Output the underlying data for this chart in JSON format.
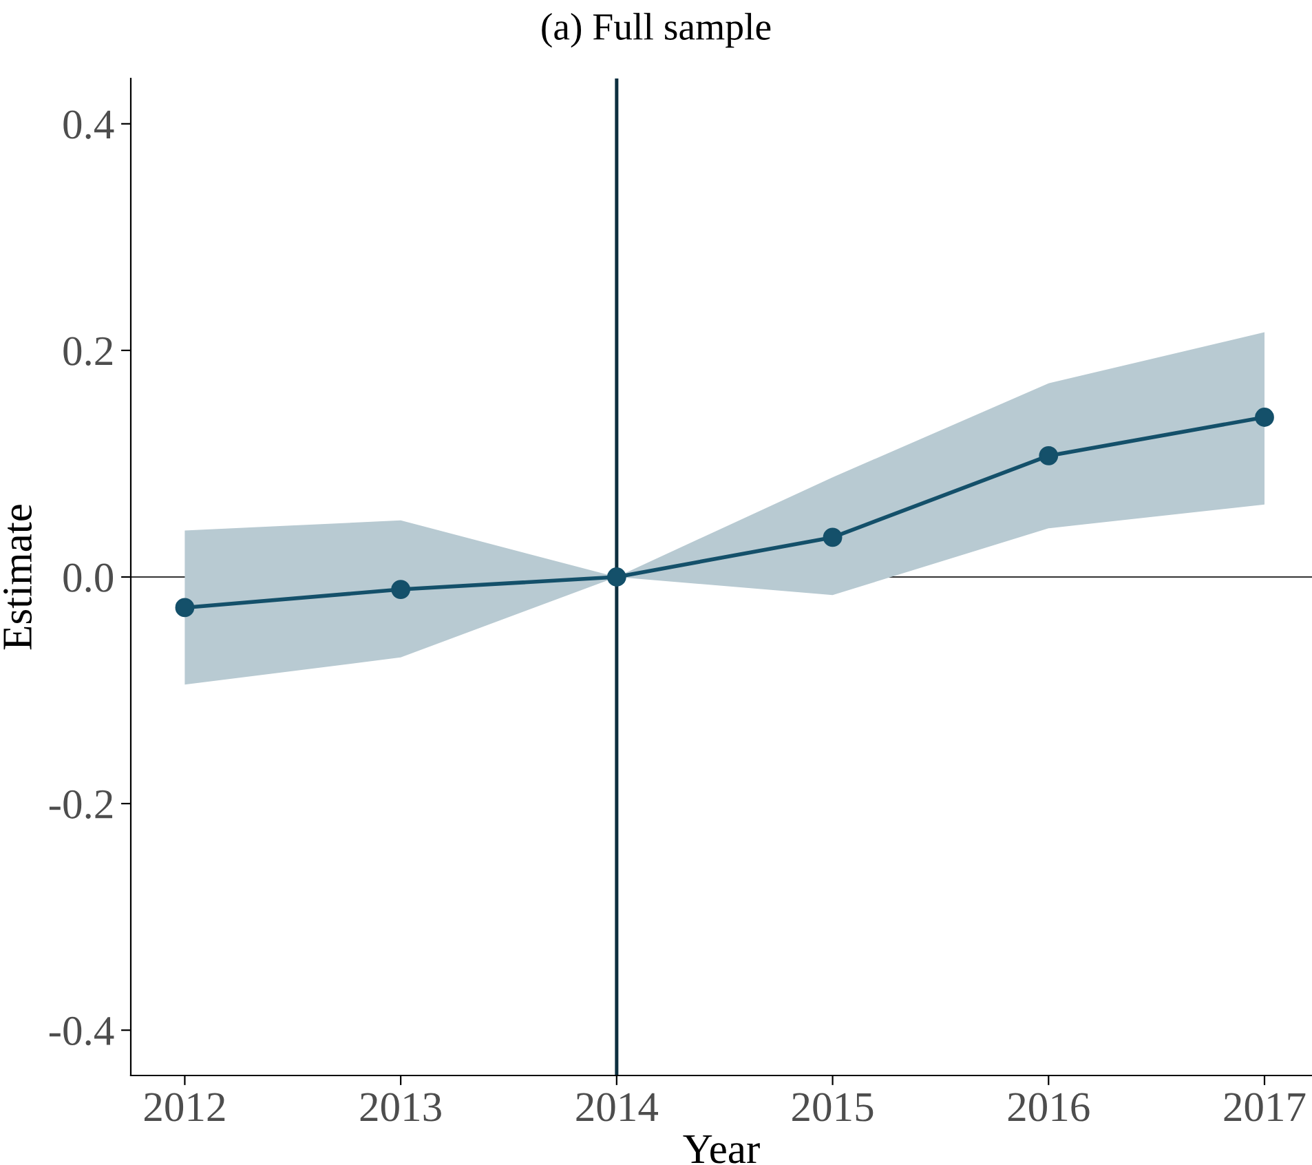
{
  "chart_data": {
    "type": "line",
    "title": "(a) Full sample",
    "xlabel": "Year",
    "ylabel": "Estimate",
    "x": [
      2012,
      2013,
      2014,
      2015,
      2016,
      2017
    ],
    "series": [
      {
        "color": "#14506a",
        "values": [
          -0.027,
          -0.011,
          0.0,
          0.035,
          0.107,
          0.141
        ],
        "lower": [
          -0.095,
          -0.071,
          0.0,
          -0.016,
          0.043,
          0.064
        ],
        "upper": [
          0.041,
          0.05,
          0.0,
          0.088,
          0.171,
          0.216
        ]
      }
    ],
    "xlim": [
      2011.75,
      2017.22
    ],
    "xticks": [
      2012,
      2013,
      2014,
      2015,
      2016,
      2017
    ],
    "ylim": [
      -0.44,
      0.44
    ],
    "yticks": [
      {
        "value": -0.4,
        "label": "-0.4"
      },
      {
        "value": -0.2,
        "label": "-0.2"
      },
      {
        "value": 0.0,
        "label": "0.0"
      },
      {
        "value": 0.2,
        "label": "0.2"
      },
      {
        "value": 0.4,
        "label": "0.4"
      }
    ],
    "ref_lines": [
      {
        "axis": "x",
        "value": 2014,
        "color": "#0d2f3f"
      },
      {
        "axis": "y",
        "value": 0,
        "color": "#333333"
      }
    ],
    "grid": false,
    "legend": false,
    "marker": "circle",
    "line_style": "solid"
  }
}
